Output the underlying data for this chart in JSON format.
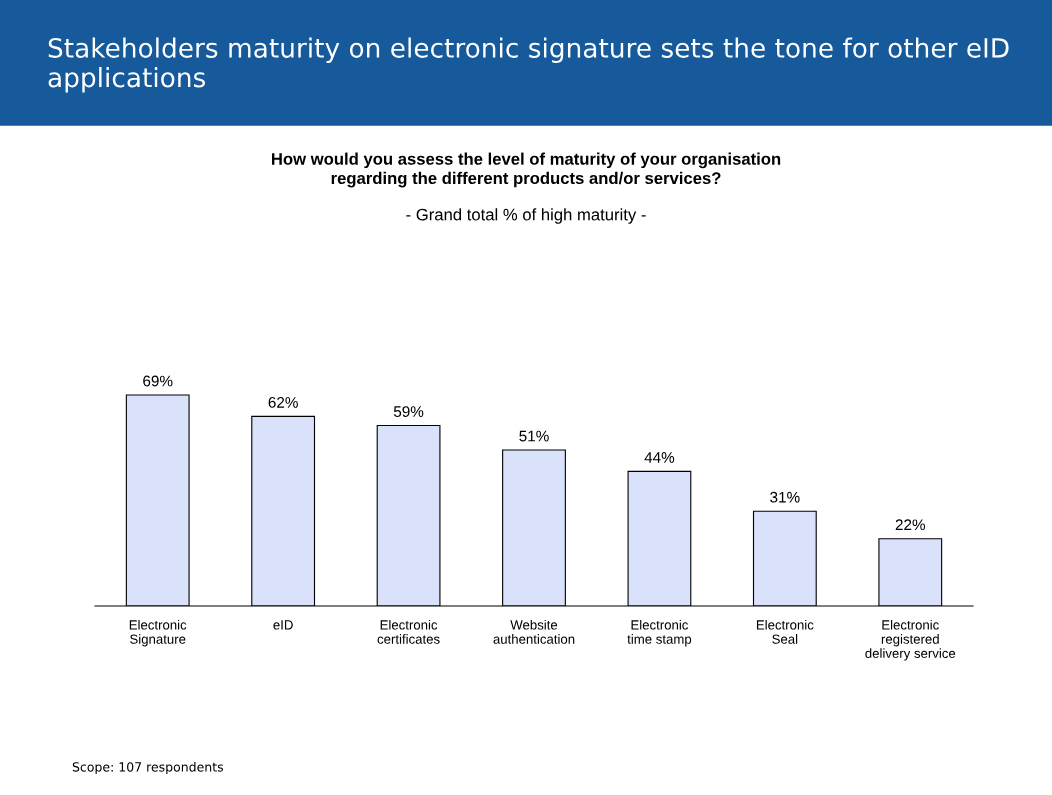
{
  "chart_data": {
    "type": "bar",
    "title": "Stakeholders maturity on electronic signature sets the tone for other eID applications",
    "subtitle": "How would you assess the level of maturity of your organisation\nregarding the different products and/or services?",
    "annotations": [
      "- Grand total % of high maturity -",
      "Scope: 107 respondents"
    ],
    "categories": [
      "Electronic\nSignature",
      "eID",
      "Electronic\ncertificates",
      "Website\nauthentication",
      "Electronic\ntime stamp",
      "Electronic\nSeal",
      "Electronic\nregistered\ndelivery service"
    ],
    "values": [
      69,
      62,
      59,
      51,
      44,
      31,
      22
    ],
    "value_labels": [
      "69%",
      "62%",
      "59%",
      "51%",
      "44%",
      "31%",
      "22%"
    ],
    "color": "#d9e1fb",
    "grid": false,
    "legend": false
  }
}
